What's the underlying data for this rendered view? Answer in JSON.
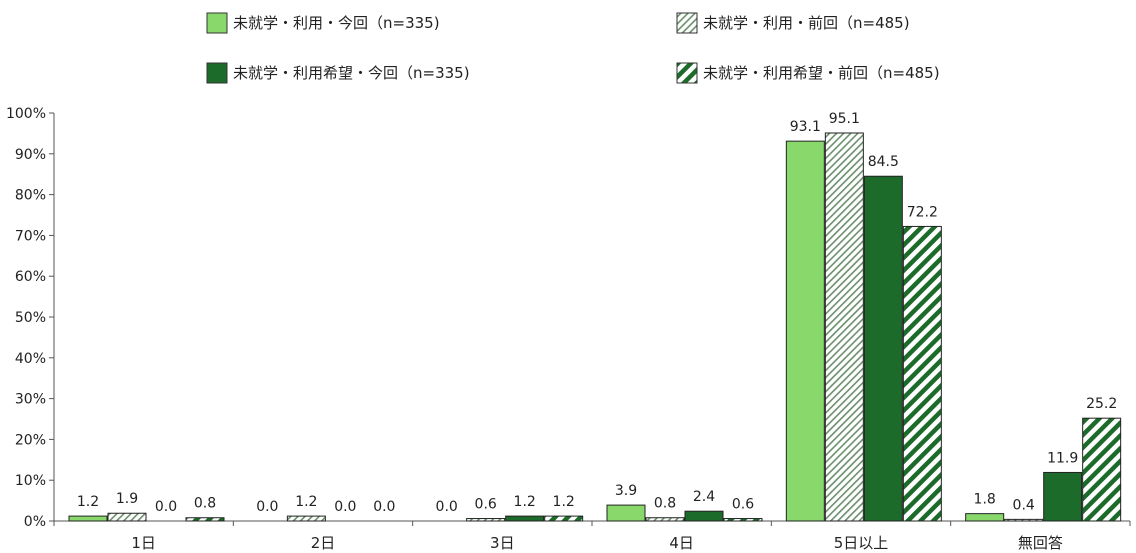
{
  "chart_data": {
    "type": "bar",
    "categories": [
      "1日",
      "2日",
      "3日",
      "4日",
      "5日以上",
      "無回答"
    ],
    "series": [
      {
        "name": "未就学・利用・今回（n=335)",
        "values": [
          1.2,
          0.0,
          0.0,
          3.9,
          93.1,
          1.8
        ],
        "labels": [
          "1.2",
          "0.0",
          "0.0",
          "3.9",
          "93.1",
          "1.8"
        ]
      },
      {
        "name": "未就学・利用・前回（n=485)",
        "values": [
          1.9,
          1.2,
          0.6,
          0.8,
          95.1,
          0.4
        ],
        "labels": [
          "1.9",
          "1.2",
          "0.6",
          "0.8",
          "95.1",
          "0.4"
        ]
      },
      {
        "name": "未就学・利用希望・今回（n=335)",
        "values": [
          0.0,
          0.0,
          1.2,
          2.4,
          84.5,
          11.9
        ],
        "labels": [
          "0.0",
          "0.0",
          "1.2",
          "2.4",
          "84.5",
          "11.9"
        ]
      },
      {
        "name": "未就学・利用希望・前回（n=485)",
        "values": [
          0.8,
          0.0,
          1.2,
          0.6,
          72.2,
          25.2
        ],
        "labels": [
          "0.8",
          "0.0",
          "1.2",
          "0.6",
          "72.2",
          "25.2"
        ]
      }
    ],
    "ylim": [
      0,
      100
    ],
    "yticks": [
      "0%",
      "10%",
      "20%",
      "30%",
      "40%",
      "50%",
      "60%",
      "70%",
      "80%",
      "90%",
      "100%"
    ],
    "grid": false,
    "legend_position": "top",
    "colors": {
      "light_green": "#88d86c",
      "dark_green": "#1c6b2a",
      "hatch_light": "#6b8f6b",
      "hatch_dark": "#1c6b2a",
      "axis": "#555555"
    }
  }
}
